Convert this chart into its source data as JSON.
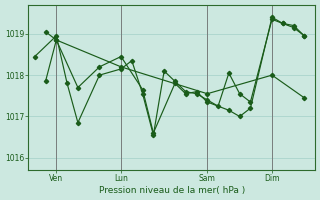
{
  "background_color": "#cce8e0",
  "grid_color": "#aad4cc",
  "line_color": "#1a5c1a",
  "xlabel": "Pression niveau de la mer( hPa )",
  "ylim": [
    1015.7,
    1019.7
  ],
  "yticks": [
    1016,
    1017,
    1018,
    1019
  ],
  "day_positions": [
    1,
    4,
    8,
    11
  ],
  "day_labels": [
    "Ven",
    "Lun",
    "Sam",
    "Dim"
  ],
  "vline_positions": [
    1,
    4,
    8,
    11
  ],
  "line1_x": [
    0.0,
    1.0,
    1.5,
    2.0,
    3.0,
    4.0,
    4.5,
    5.0,
    5.5,
    6.0,
    6.5,
    7.0,
    7.5,
    8.0,
    8.5,
    9.0,
    9.5,
    10.0,
    11.0,
    11.5,
    12.0,
    12.5
  ],
  "line1_y": [
    1018.45,
    1018.95,
    1017.8,
    1016.85,
    1018.0,
    1018.15,
    1018.35,
    1017.55,
    1016.55,
    1018.1,
    1017.85,
    1017.6,
    1017.55,
    1017.4,
    1017.25,
    1018.05,
    1017.55,
    1017.35,
    1019.35,
    1019.25,
    1019.2,
    1018.95
  ],
  "line2_x": [
    0.5,
    1.0,
    2.0,
    3.0,
    4.0,
    5.0,
    5.5,
    6.5,
    7.0,
    7.5,
    8.0,
    9.0,
    9.5,
    10.0,
    11.0,
    11.5,
    12.0,
    12.5
  ],
  "line2_y": [
    1019.05,
    1018.85,
    1017.7,
    1018.2,
    1018.45,
    1017.65,
    1016.6,
    1017.8,
    1017.55,
    1017.6,
    1017.35,
    1017.15,
    1017.0,
    1017.2,
    1019.4,
    1019.25,
    1019.15,
    1018.95
  ],
  "line3_x": [
    0.5,
    1.0,
    4.0,
    8.0,
    11.0,
    12.5
  ],
  "line3_y": [
    1017.85,
    1018.85,
    1018.2,
    1017.55,
    1018.0,
    1017.45
  ]
}
